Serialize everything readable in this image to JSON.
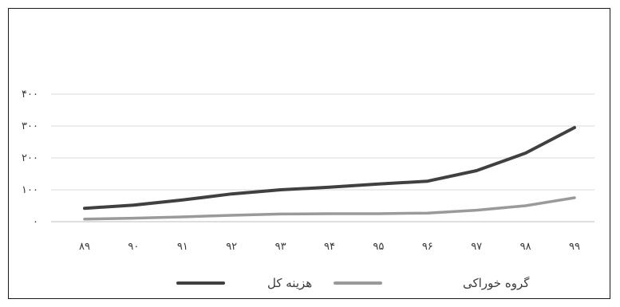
{
  "chart_data": {
    "type": "line",
    "title": "",
    "xlabel": "",
    "ylabel": "",
    "categories": [
      "۸۹",
      "۹۰",
      "۹۱",
      "۹۲",
      "۹۳",
      "۹۴",
      "۹۵",
      "۹۶",
      "۹۷",
      "۹۸",
      "۹۹"
    ],
    "y_ticks": [
      "۰",
      "۱۰۰",
      "۲۰۰",
      "۳۰۰",
      "۴۰۰"
    ],
    "ylim": [
      0,
      400
    ],
    "grid": true,
    "legend_position": "bottom",
    "series": [
      {
        "name": "هزینه کل",
        "color": "#404040",
        "values": [
          42,
          52,
          68,
          87,
          100,
          108,
          118,
          127,
          160,
          215,
          295
        ]
      },
      {
        "name": "گروه خوراکی",
        "color": "#9a9a9a",
        "values": [
          8,
          11,
          15,
          20,
          24,
          25,
          25,
          27,
          36,
          50,
          75
        ]
      }
    ]
  }
}
